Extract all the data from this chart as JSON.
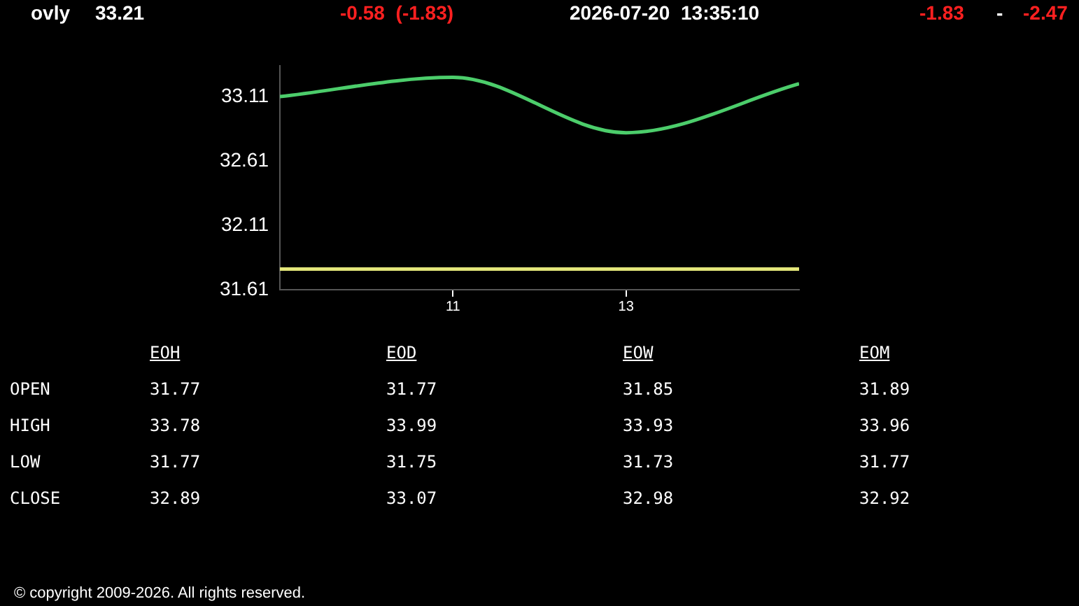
{
  "chart_data": [
    {
      "type": "line",
      "annotations": [
        "ovly",
        "33.21",
        "-0.58 (-1.83)",
        "2026-07-20 13:35:10",
        "-1.83",
        "-",
        "-2.47"
      ],
      "xlim": [
        9,
        15
      ],
      "xticks": [
        11,
        13
      ],
      "ylim": [
        31.61,
        33.35
      ],
      "yticks": [
        31.61,
        32.11,
        32.61,
        33.11
      ],
      "series": [
        {
          "color": "#4ccd6b",
          "x": [
            9,
            11,
            13,
            15
          ],
          "values": [
            33.11,
            33.26,
            32.83,
            33.21
          ]
        },
        {
          "color": "#e3e67a",
          "x": [
            9,
            15
          ],
          "values": [
            31.77,
            31.77
          ]
        }
      ]
    },
    {
      "type": "other",
      "annotations": [
        "EOH",
        "EOD",
        "EOW",
        "EOM",
        "OPEN",
        "31.77",
        "31.77",
        "31.85",
        "31.89",
        "HIGH",
        "33.78",
        "33.99",
        "33.93",
        "33.96",
        "LOW",
        "31.77",
        "31.75",
        "31.73",
        "31.77",
        "CLOSE",
        "32.89",
        "33.07",
        "32.98",
        "32.92",
        "© copyright 2009-2026. All rights reserved."
      ]
    }
  ]
}
